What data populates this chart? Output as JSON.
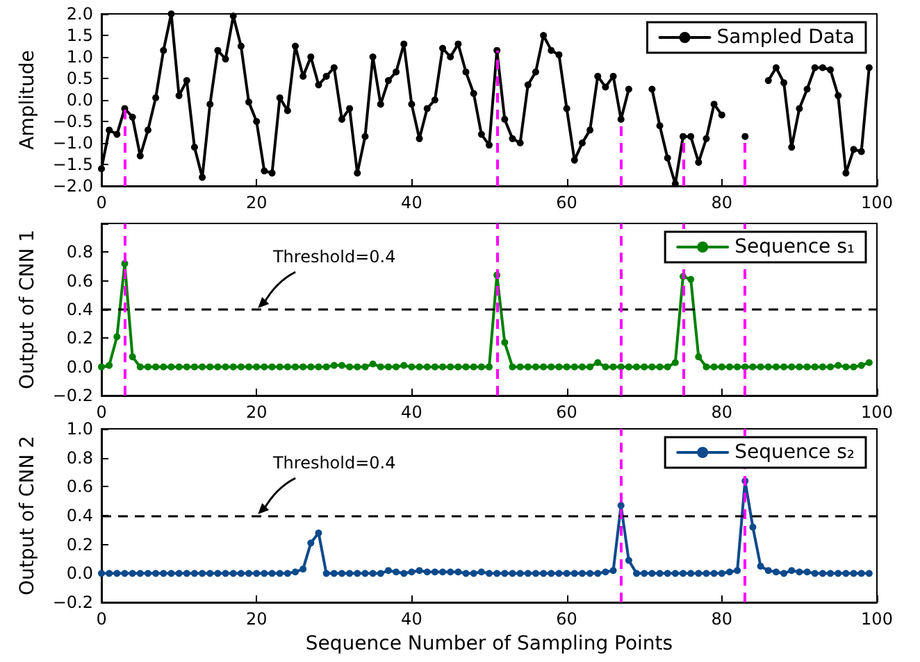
{
  "chart_data": [
    {
      "type": "line",
      "ylabel": "Amplitude",
      "x": [
        0,
        1,
        2,
        3,
        4,
        5,
        6,
        7,
        8,
        9,
        10,
        11,
        12,
        13,
        14,
        15,
        16,
        17,
        18,
        19,
        20,
        21,
        22,
        23,
        24,
        25,
        26,
        27,
        28,
        29,
        30,
        31,
        32,
        33,
        34,
        35,
        36,
        37,
        38,
        39,
        40,
        41,
        42,
        43,
        44,
        45,
        46,
        47,
        48,
        49,
        50,
        51,
        52,
        53,
        54,
        55,
        56,
        57,
        58,
        59,
        60,
        61,
        62,
        63,
        64,
        65,
        66,
        67,
        68,
        69,
        70,
        71,
        72,
        73,
        74,
        75,
        76,
        77,
        78,
        79,
        80,
        81,
        82,
        83,
        84,
        85,
        86,
        87,
        88,
        89,
        90,
        91,
        92,
        93,
        94,
        95,
        96,
        97,
        98,
        99
      ],
      "series": [
        {
          "name": "Sampled Data",
          "color": "#000000",
          "values": [
            -1.6,
            -0.7,
            -0.8,
            -0.2,
            -0.4,
            -1.3,
            -0.7,
            0.05,
            1.15,
            2.0,
            0.1,
            0.45,
            -1.1,
            -1.8,
            -0.1,
            1.15,
            0.95,
            1.95,
            1.25,
            -0.05,
            -0.5,
            -1.65,
            -1.7,
            0.05,
            -0.25,
            1.25,
            0.55,
            1.0,
            0.35,
            0.55,
            0.75,
            -0.45,
            -0.2,
            -1.7,
            -0.85,
            1.0,
            -0.1,
            0.45,
            0.65,
            1.3,
            -0.1,
            -0.9,
            -0.2,
            0.0,
            1.2,
            1.0,
            1.3,
            0.65,
            0.15,
            -0.8,
            -1.05,
            1.15,
            -0.45,
            -0.9,
            -1.0,
            0.35,
            0.65,
            1.5,
            1.15,
            1.05,
            -0.2,
            -1.4,
            -1.0,
            -0.7,
            0.55,
            0.3,
            0.55,
            -0.45,
            0.25,
            null,
            null,
            0.25,
            -0.6,
            -1.35,
            -1.95,
            -0.85,
            -0.85,
            -1.45,
            -0.9,
            -0.1,
            -0.35,
            null,
            null,
            -0.85,
            null,
            null,
            0.45,
            0.75,
            0.4,
            -1.1,
            -0.2,
            0.25,
            0.75,
            0.75,
            0.7,
            0.1,
            -1.7,
            -1.15,
            -1.2,
            0.75
          ]
        }
      ],
      "xlim": [
        0,
        100
      ],
      "xticks": [
        0,
        20,
        40,
        60,
        80,
        100
      ],
      "ylim": [
        -2,
        2
      ],
      "yticks": [
        {
          "value": -2,
          "label": "−2.0"
        },
        {
          "value": -1.5,
          "label": "−1.5"
        },
        {
          "value": -1,
          "label": "−1.0"
        },
        {
          "value": -0.5,
          "label": "−0.5"
        },
        {
          "value": 0,
          "label": "0.0"
        },
        {
          "value": 0.5,
          "label": "0.5"
        },
        {
          "value": 1,
          "label": "1.0"
        },
        {
          "value": 1.5,
          "label": "1.5"
        },
        {
          "value": 2,
          "label": "2.0"
        }
      ],
      "ref_lines": [
        {
          "axis": "x",
          "value": 3,
          "color": "#ff00ff",
          "line_style": "dashed"
        },
        {
          "axis": "x",
          "value": 51,
          "color": "#ff00ff",
          "line_style": "dashed"
        },
        {
          "axis": "x",
          "value": 67,
          "color": "#ff00ff",
          "line_style": "dashed"
        },
        {
          "axis": "x",
          "value": 75,
          "color": "#ff00ff",
          "line_style": "dashed"
        },
        {
          "axis": "x",
          "value": 83,
          "color": "#ff00ff",
          "line_style": "dashed"
        }
      ],
      "legend": "top right",
      "marker": "circle",
      "line_style": "solid"
    },
    {
      "type": "line",
      "ylabel": "Output of CNN 1",
      "x": [
        0,
        1,
        2,
        3,
        4,
        5,
        6,
        7,
        8,
        9,
        10,
        11,
        12,
        13,
        14,
        15,
        16,
        17,
        18,
        19,
        20,
        21,
        22,
        23,
        24,
        25,
        26,
        27,
        28,
        29,
        30,
        31,
        32,
        33,
        34,
        35,
        36,
        37,
        38,
        39,
        40,
        41,
        42,
        43,
        44,
        45,
        46,
        47,
        48,
        49,
        50,
        51,
        52,
        53,
        54,
        55,
        56,
        57,
        58,
        59,
        60,
        61,
        62,
        63,
        64,
        65,
        66,
        67,
        68,
        69,
        70,
        71,
        72,
        73,
        74,
        75,
        76,
        77,
        78,
        79,
        80,
        81,
        82,
        83,
        84,
        85,
        86,
        87,
        88,
        89,
        90,
        91,
        92,
        93,
        94,
        95,
        96,
        97,
        98,
        99
      ],
      "series": [
        {
          "name": "Sequence s₁",
          "color": "#008000",
          "values": [
            0,
            0.01,
            0.21,
            0.72,
            0.07,
            0,
            0,
            0,
            0,
            0,
            0,
            0,
            0,
            0,
            0,
            0,
            0,
            0,
            0,
            0,
            0,
            0,
            0,
            0,
            0,
            0,
            0,
            0,
            0,
            0,
            0.01,
            0.01,
            0,
            0,
            0,
            0.02,
            0,
            0,
            0,
            0.01,
            0,
            0,
            0,
            0,
            0,
            0,
            0,
            0,
            0,
            0,
            0,
            0.64,
            0.17,
            0,
            0,
            0,
            0,
            0,
            0,
            0,
            0,
            0,
            0,
            0,
            0.03,
            0,
            0,
            0,
            0,
            0,
            0,
            0,
            0,
            0,
            0.03,
            0.63,
            0.61,
            0.07,
            0,
            0,
            0,
            0,
            0,
            0,
            0,
            0,
            0,
            0,
            0,
            0,
            0,
            0,
            0,
            0,
            0,
            0.01,
            0,
            0,
            0.01,
            0.03
          ]
        }
      ],
      "xlim": [
        0,
        100
      ],
      "xticks": [
        0,
        20,
        40,
        60,
        80,
        100
      ],
      "ylim": [
        -0.2,
        1
      ],
      "yticks": [
        {
          "value": -0.2,
          "label": "−0.2"
        },
        {
          "value": 0,
          "label": "0.0"
        },
        {
          "value": 0.2,
          "label": "0.2"
        },
        {
          "value": 0.4,
          "label": "0.4"
        },
        {
          "value": 0.6,
          "label": "0.6"
        },
        {
          "value": 0.8,
          "label": "0.8"
        },
        {
          "value": 1,
          "label": null
        }
      ],
      "ref_lines": [
        {
          "axis": "y",
          "value": 0.4,
          "color": "#000000",
          "line_style": "dashed"
        },
        {
          "axis": "x",
          "value": 3,
          "color": "#ff00ff",
          "line_style": "dashed"
        },
        {
          "axis": "x",
          "value": 51,
          "color": "#ff00ff",
          "line_style": "dashed"
        },
        {
          "axis": "x",
          "value": 67,
          "color": "#ff00ff",
          "line_style": "dashed"
        },
        {
          "axis": "x",
          "value": 75,
          "color": "#ff00ff",
          "line_style": "dashed"
        },
        {
          "axis": "x",
          "value": 83,
          "color": "#ff00ff",
          "line_style": "dashed"
        }
      ],
      "annotations": [
        {
          "text": "Threshold=0.4",
          "x": 20,
          "y": 0.4
        }
      ],
      "legend": "top right",
      "marker": "circle",
      "line_style": "solid"
    },
    {
      "type": "line",
      "ylabel": "Output of CNN 2",
      "xlabel": "Sequence Number of Sampling Points",
      "x": [
        0,
        1,
        2,
        3,
        4,
        5,
        6,
        7,
        8,
        9,
        10,
        11,
        12,
        13,
        14,
        15,
        16,
        17,
        18,
        19,
        20,
        21,
        22,
        23,
        24,
        25,
        26,
        27,
        28,
        29,
        30,
        31,
        32,
        33,
        34,
        35,
        36,
        37,
        38,
        39,
        40,
        41,
        42,
        43,
        44,
        45,
        46,
        47,
        48,
        49,
        50,
        51,
        52,
        53,
        54,
        55,
        56,
        57,
        58,
        59,
        60,
        61,
        62,
        63,
        64,
        65,
        66,
        67,
        68,
        69,
        70,
        71,
        72,
        73,
        74,
        75,
        76,
        77,
        78,
        79,
        80,
        81,
        82,
        83,
        84,
        85,
        86,
        87,
        88,
        89,
        90,
        91,
        92,
        93,
        94,
        95,
        96,
        97,
        98,
        99
      ],
      "series": [
        {
          "name": "Sequence s₂",
          "color": "#0d4a8c",
          "values": [
            0,
            0,
            0,
            0,
            0,
            0,
            0,
            0,
            0,
            0,
            0,
            0,
            0,
            0,
            0,
            0,
            0,
            0,
            0,
            0,
            0,
            0,
            0,
            0,
            0,
            0.01,
            0.03,
            0.21,
            0.28,
            0,
            0,
            0,
            0,
            0,
            0,
            0,
            0,
            0.02,
            0.01,
            0,
            0.01,
            0.02,
            0.01,
            0.01,
            0.01,
            0.01,
            0.01,
            0,
            0,
            0.01,
            0,
            0,
            0,
            0,
            0,
            0,
            0,
            0,
            0,
            0,
            0,
            0,
            0,
            0,
            0,
            0.01,
            0.02,
            0.47,
            0.09,
            0,
            0,
            0,
            0,
            0,
            0,
            0,
            0,
            0,
            0,
            0,
            0,
            0.01,
            0.02,
            0.64,
            0.32,
            0.05,
            0.02,
            0.01,
            0,
            0.02,
            0.01,
            0.01,
            0,
            0,
            0,
            0,
            0,
            0,
            0,
            0
          ]
        }
      ],
      "xlim": [
        0,
        100
      ],
      "xticks": [
        0,
        20,
        40,
        60,
        80,
        100
      ],
      "ylim": [
        -0.2,
        1
      ],
      "yticks": [
        {
          "value": -0.2,
          "label": "−0.2"
        },
        {
          "value": 0,
          "label": "0.0"
        },
        {
          "value": 0.2,
          "label": "0.2"
        },
        {
          "value": 0.4,
          "label": "0.4"
        },
        {
          "value": 0.6,
          "label": "0.6"
        },
        {
          "value": 0.8,
          "label": "0.8"
        },
        {
          "value": 1,
          "label": "1.0"
        }
      ],
      "ref_lines": [
        {
          "axis": "y",
          "value": 0.4,
          "color": "#000000",
          "line_style": "dashed"
        },
        {
          "axis": "x",
          "value": 67,
          "color": "#ff00ff",
          "line_style": "dashed"
        },
        {
          "axis": "x",
          "value": 83,
          "color": "#ff00ff",
          "line_style": "dashed"
        }
      ],
      "annotations": [
        {
          "text": "Threshold=0.4",
          "x": 20,
          "y": 0.4
        }
      ],
      "legend": "top right",
      "marker": "circle",
      "line_style": "solid"
    }
  ]
}
